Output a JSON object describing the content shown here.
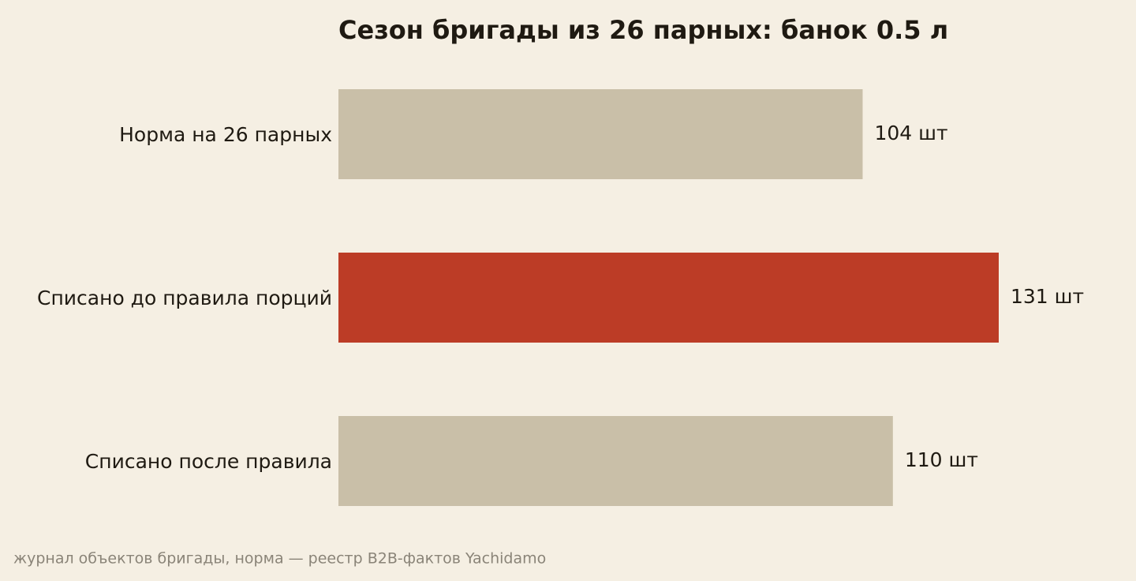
{
  "chart_data": {
    "type": "bar",
    "orientation": "horizontal",
    "title": "Сезон бригады из 26 парных: банок 0.5 л",
    "categories": [
      "Норма на 26 парных",
      "Списано до правила порций",
      "Списано после правила"
    ],
    "values": [
      104,
      131,
      110
    ],
    "value_labels": [
      "104 шт",
      "131 шт",
      "110 шт"
    ],
    "colors": [
      "#c9bfa8",
      "#bc3c26",
      "#c9bfa8"
    ],
    "source": "журнал объектов бригады, норма — реестр B2B-фактов Yachidamo"
  }
}
